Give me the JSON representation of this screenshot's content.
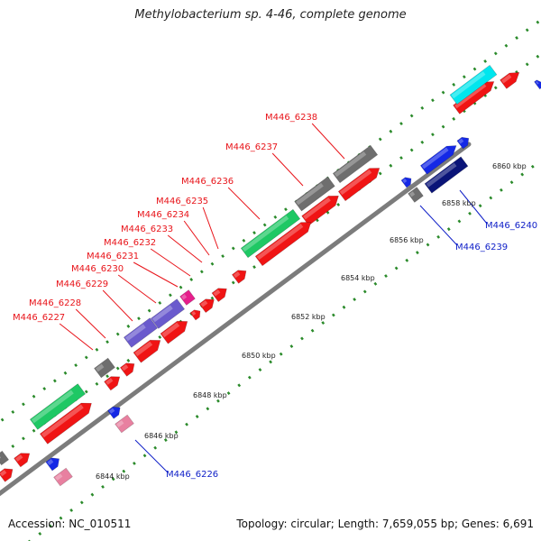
{
  "header": {
    "title": "Methylobacterium sp. 4-46, complete genome"
  },
  "footer": {
    "accession": "Accession: NC_010511",
    "summary": "Topology: circular; Length: 7,659,055 bp; Genes: 6,691"
  },
  "ticks": [
    "6844 kbp",
    "6846 kbp",
    "6848 kbp",
    "6850 kbp",
    "6852 kbp",
    "6854 kbp",
    "6856 kbp",
    "6858 kbp",
    "6860 kbp"
  ],
  "gene_labels_forward": [
    "M446_6227",
    "M446_6228",
    "M446_6229",
    "M446_6230",
    "M446_6231",
    "M446_6232",
    "M446_6233",
    "M446_6234",
    "M446_6235",
    "M446_6236",
    "M446_6237",
    "M446_6238"
  ],
  "gene_labels_reverse": [
    "M446_6226",
    "M446_6239",
    "M446_6240"
  ],
  "colors": {
    "forward_label": "#e8141a",
    "reverse_label": "#1020c8",
    "gene_red": "#f01414",
    "gene_blue": "#1428e6",
    "gene_navy": "#0a1478",
    "gene_green": "#1ec864",
    "gene_gray": "#6e6e6e",
    "gene_purple": "#6a5acd",
    "gene_pink": "#e880a0",
    "gene_magenta": "#e61e8c",
    "gene_cyan": "#00e6ee",
    "backbone": "#7c7c7c",
    "dots": "#2a8a2a"
  }
}
